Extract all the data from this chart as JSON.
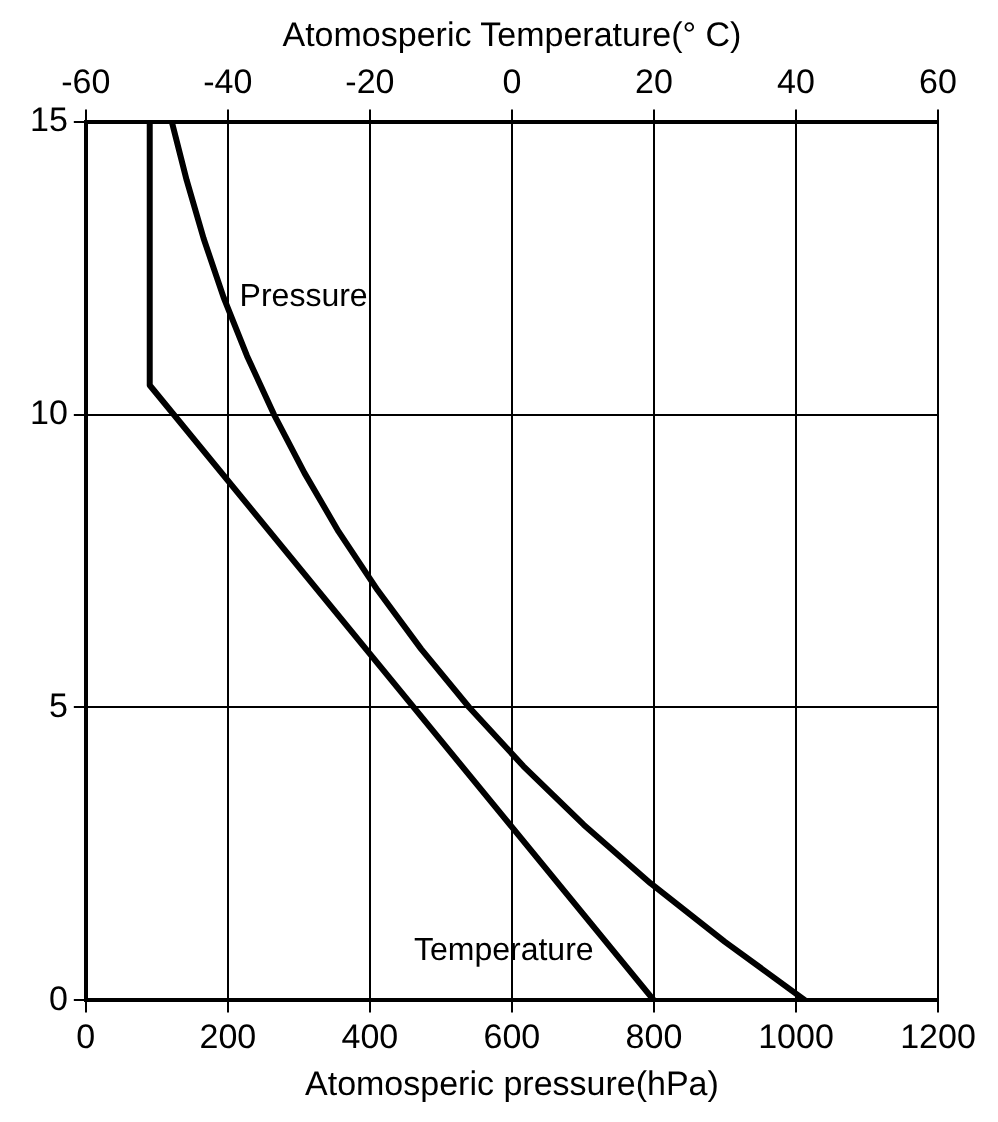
{
  "chart_data": {
    "type": "line",
    "xlabel": "Atomosperic pressure(hPa)",
    "x2label": "Atomosperic Temperature(° C)",
    "xlim": [
      0,
      1200
    ],
    "xticks": [
      0,
      200,
      400,
      600,
      800,
      1000,
      1200
    ],
    "x2lim": [
      -60,
      60
    ],
    "x2ticks": [
      -60,
      -40,
      -20,
      0,
      20,
      40,
      60
    ],
    "ylim": [
      0,
      15
    ],
    "yticks": [
      0,
      5,
      10,
      15
    ],
    "grid": true,
    "legend": false,
    "marker": "none",
    "line_style": "solid",
    "series": [
      {
        "name": "Pressure",
        "color": "#000000",
        "x": [
          1013,
          900,
          795,
          701,
          616,
          540,
          472,
          411,
          356,
          308,
          265,
          227,
          194,
          166,
          142,
          121
        ],
        "values": [
          0,
          1,
          2,
          3,
          4,
          5,
          6,
          7,
          8,
          9,
          10,
          11,
          12,
          13,
          14,
          15
        ]
      },
      {
        "name": "Temperature",
        "color": "#000000",
        "axis": "x2",
        "x": [
          20,
          -51,
          -51
        ],
        "values": [
          0,
          10.5,
          15
        ]
      }
    ]
  }
}
